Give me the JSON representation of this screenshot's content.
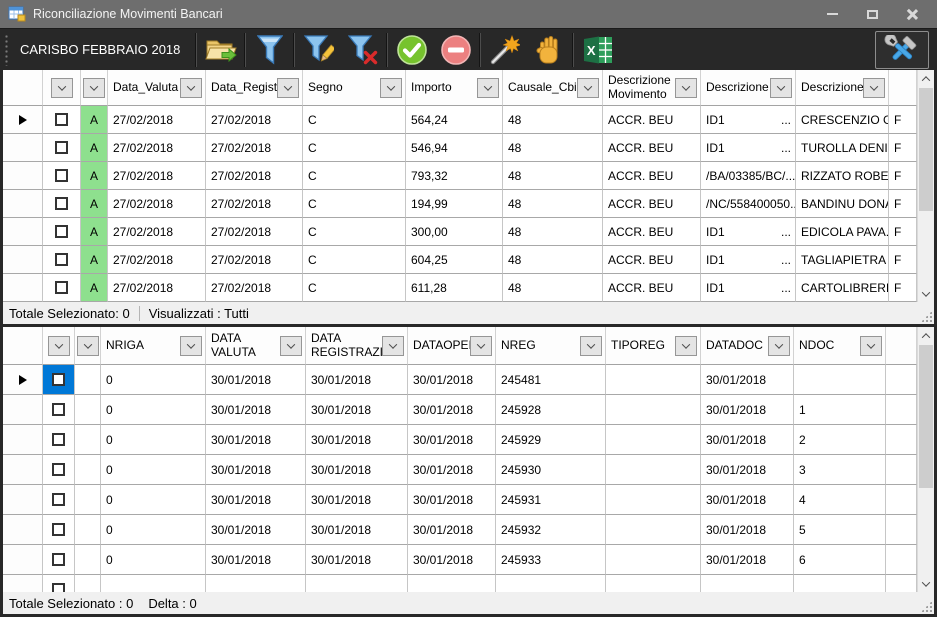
{
  "window": {
    "title": "Riconciliazione Movimenti Bancari",
    "controls": [
      "minimize",
      "maximize",
      "close"
    ]
  },
  "toolbar": {
    "label": "CARISBO FEBBRAIO 2018",
    "buttons": [
      {
        "name": "open-file",
        "icon": "folder-export-icon"
      },
      {
        "name": "filter",
        "icon": "funnel-icon"
      },
      {
        "name": "filter-edit",
        "icon": "funnel-pencil-icon"
      },
      {
        "name": "filter-clear",
        "icon": "funnel-x-icon"
      },
      {
        "name": "confirm",
        "icon": "check-circle-icon"
      },
      {
        "name": "remove",
        "icon": "minus-circle-icon"
      },
      {
        "name": "auto-match",
        "icon": "magic-wand-icon"
      },
      {
        "name": "manual-match",
        "icon": "hand-icon"
      },
      {
        "name": "export-excel",
        "icon": "excel-icon"
      },
      {
        "name": "settings",
        "icon": "tools-icon"
      }
    ]
  },
  "top_grid": {
    "columns": [
      {
        "name": "row-header",
        "label": "",
        "dropdown": false
      },
      {
        "name": "select",
        "label": "",
        "dropdown": true
      },
      {
        "name": "flag",
        "label": "",
        "dropdown": true
      },
      {
        "name": "data-valuta",
        "label": "Data_Valuta",
        "dropdown": true
      },
      {
        "name": "data-registrazione",
        "label": "Data_Registraz",
        "dropdown": true
      },
      {
        "name": "segno",
        "label": "Segno",
        "dropdown": true
      },
      {
        "name": "importo",
        "label": "Importo",
        "dropdown": true
      },
      {
        "name": "causale-cbi",
        "label": "Causale_Cbi",
        "dropdown": true
      },
      {
        "name": "descrizione-movimento",
        "label": "Descrizione Movimento",
        "dropdown": true
      },
      {
        "name": "descrizione",
        "label": "Descrizione",
        "dropdown": true
      },
      {
        "name": "descrizione-or",
        "label": "Descrizione_Or",
        "dropdown": true
      },
      {
        "name": "overflow",
        "label": "",
        "dropdown": false
      }
    ],
    "rows": [
      {
        "current": true,
        "cells": [
          "",
          {
            "kind": "checkbox"
          },
          {
            "kind": "green",
            "text": "A"
          },
          "27/02/2018",
          "27/02/2018",
          "C",
          "564,24",
          "48",
          "ACCR. BEU",
          {
            "kind": "split",
            "text": "ID1",
            "dots": "..."
          },
          "CRESCENZIO GI...",
          "F"
        ]
      },
      {
        "cells": [
          "",
          {
            "kind": "checkbox"
          },
          {
            "kind": "green",
            "text": "A"
          },
          "27/02/2018",
          "27/02/2018",
          "C",
          "546,94",
          "48",
          "ACCR. BEU",
          {
            "kind": "split",
            "text": "ID1",
            "dots": "..."
          },
          "TUROLLA DENI...",
          "F"
        ]
      },
      {
        "cells": [
          "",
          {
            "kind": "checkbox"
          },
          {
            "kind": "green",
            "text": "A"
          },
          "27/02/2018",
          "27/02/2018",
          "C",
          "793,32",
          "48",
          "ACCR. BEU",
          "/BA/03385/BC/...",
          "RIZZATO ROBE...",
          "F"
        ]
      },
      {
        "cells": [
          "",
          {
            "kind": "checkbox"
          },
          {
            "kind": "green",
            "text": "A"
          },
          "27/02/2018",
          "27/02/2018",
          "C",
          "194,99",
          "48",
          "ACCR. BEU",
          "/NC/558400050...",
          "BANDINU DONA...",
          "F"
        ]
      },
      {
        "cells": [
          "",
          {
            "kind": "checkbox"
          },
          {
            "kind": "green",
            "text": "A"
          },
          "27/02/2018",
          "27/02/2018",
          "C",
          "300,00",
          "48",
          "ACCR. BEU",
          {
            "kind": "split",
            "text": "ID1",
            "dots": "..."
          },
          "EDICOLA PAVA...",
          "F"
        ]
      },
      {
        "cells": [
          "",
          {
            "kind": "checkbox"
          },
          {
            "kind": "green",
            "text": "A"
          },
          "27/02/2018",
          "27/02/2018",
          "C",
          "604,25",
          "48",
          "ACCR. BEU",
          {
            "kind": "split",
            "text": "ID1",
            "dots": "..."
          },
          "TAGLIAPIETRA ...",
          "F"
        ]
      },
      {
        "cells": [
          "",
          {
            "kind": "checkbox"
          },
          {
            "kind": "green",
            "text": "A"
          },
          "27/02/2018",
          "27/02/2018",
          "C",
          "611,28",
          "48",
          "ACCR. BEU",
          {
            "kind": "split",
            "text": "ID1",
            "dots": "..."
          },
          "CARTOLIBRERI...",
          "F"
        ]
      }
    ],
    "status": {
      "left": "Totale Selezionato: 0",
      "right": "Visualizzati : Tutti"
    }
  },
  "bottom_grid": {
    "columns": [
      {
        "name": "row-header",
        "label": "",
        "dropdown": false
      },
      {
        "name": "select",
        "label": "",
        "dropdown": true
      },
      {
        "name": "blank",
        "label": "",
        "dropdown": true
      },
      {
        "name": "nriga",
        "label": "NRIGA",
        "dropdown": true
      },
      {
        "name": "data-valuta",
        "label": "DATA VALUTA",
        "dropdown": true
      },
      {
        "name": "data-registrazione",
        "label": "DATA REGISTRAZIO",
        "dropdown": true
      },
      {
        "name": "dataoperazione",
        "label": "DATAOPERAZ",
        "dropdown": true
      },
      {
        "name": "nreg",
        "label": "NREG",
        "dropdown": true
      },
      {
        "name": "tiporeg",
        "label": "TIPOREG",
        "dropdown": true
      },
      {
        "name": "datadoc",
        "label": "DATADOC",
        "dropdown": true
      },
      {
        "name": "ndoc",
        "label": "NDOC",
        "dropdown": true
      },
      {
        "name": "overflow",
        "label": "",
        "dropdown": false
      }
    ],
    "rows": [
      {
        "current": true,
        "cells": [
          "",
          {
            "kind": "checkbox",
            "selected": true
          },
          "",
          "0",
          "30/01/2018",
          "30/01/2018",
          "30/01/2018",
          "245481",
          "",
          "30/01/2018",
          "",
          ""
        ]
      },
      {
        "cells": [
          "",
          {
            "kind": "checkbox"
          },
          "",
          "0",
          "30/01/2018",
          "30/01/2018",
          "30/01/2018",
          "245928",
          "",
          "30/01/2018",
          "1",
          ""
        ]
      },
      {
        "cells": [
          "",
          {
            "kind": "checkbox"
          },
          "",
          "0",
          "30/01/2018",
          "30/01/2018",
          "30/01/2018",
          "245929",
          "",
          "30/01/2018",
          "2",
          ""
        ]
      },
      {
        "cells": [
          "",
          {
            "kind": "checkbox"
          },
          "",
          "0",
          "30/01/2018",
          "30/01/2018",
          "30/01/2018",
          "245930",
          "",
          "30/01/2018",
          "3",
          ""
        ]
      },
      {
        "cells": [
          "",
          {
            "kind": "checkbox"
          },
          "",
          "0",
          "30/01/2018",
          "30/01/2018",
          "30/01/2018",
          "245931",
          "",
          "30/01/2018",
          "4",
          ""
        ]
      },
      {
        "cells": [
          "",
          {
            "kind": "checkbox"
          },
          "",
          "0",
          "30/01/2018",
          "30/01/2018",
          "30/01/2018",
          "245932",
          "",
          "30/01/2018",
          "5",
          ""
        ]
      },
      {
        "cells": [
          "",
          {
            "kind": "checkbox"
          },
          "",
          "0",
          "30/01/2018",
          "30/01/2018",
          "30/01/2018",
          "245933",
          "",
          "30/01/2018",
          "6",
          ""
        ]
      },
      {
        "partial": true,
        "cells": [
          "",
          {
            "kind": "checkbox"
          },
          "",
          "",
          "",
          "",
          "",
          "",
          "",
          "",
          "",
          ""
        ]
      }
    ],
    "status": {
      "left": "Totale Selezionato : 0",
      "delta": "Delta : 0"
    }
  }
}
